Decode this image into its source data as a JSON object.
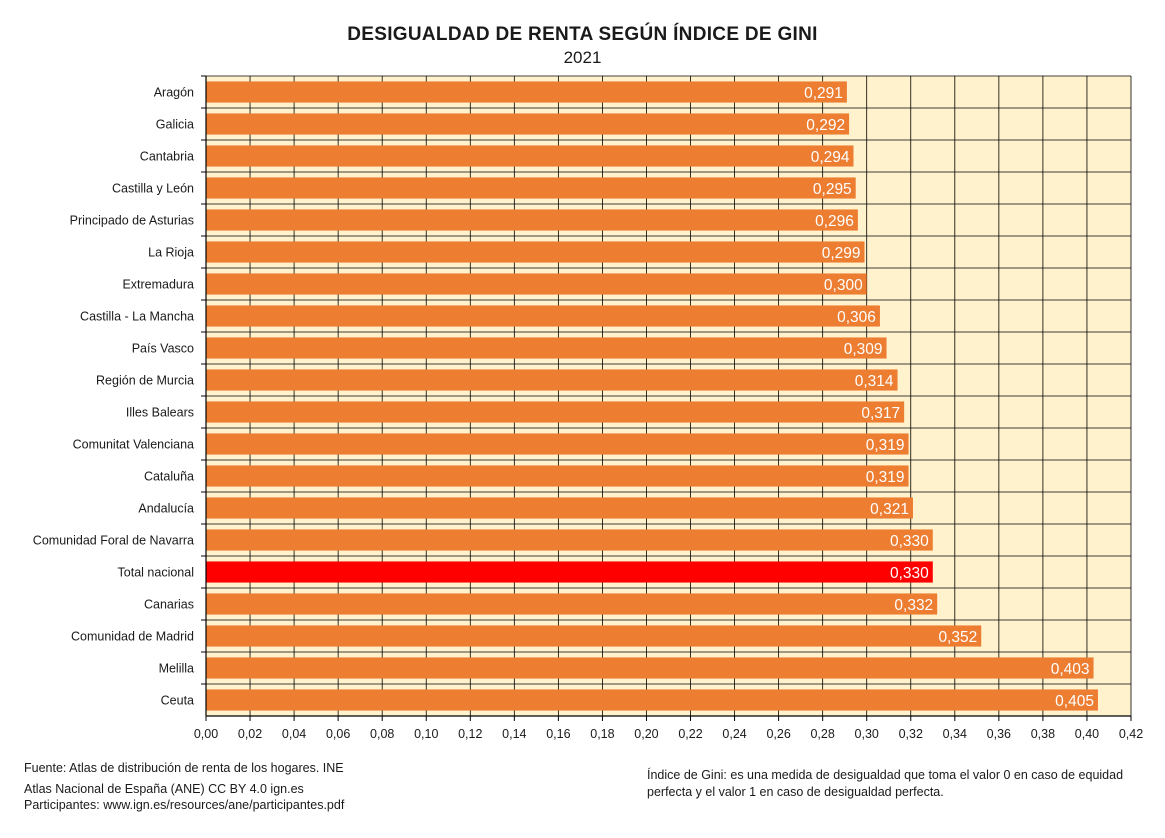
{
  "chart_data": {
    "type": "bar",
    "orientation": "horizontal",
    "title": "DESIGUALDAD DE RENTA SEGÚN ÍNDICE DE GINI",
    "subtitle": "2021",
    "categories": [
      "Aragón",
      "Galicia",
      "Cantabria",
      "Castilla y León",
      "Principado de Asturias",
      "La Rioja",
      "Extremadura",
      "Castilla - La Mancha",
      "País Vasco",
      "Región de Murcia",
      "Illes Balears",
      "Comunitat Valenciana",
      "Cataluña",
      "Andalucía",
      "Comunidad Foral de Navarra",
      "Total nacional",
      "Canarias",
      "Comunidad de Madrid",
      "Melilla",
      "Ceuta"
    ],
    "values": [
      0.291,
      0.292,
      0.294,
      0.295,
      0.296,
      0.299,
      0.3,
      0.306,
      0.309,
      0.314,
      0.317,
      0.319,
      0.319,
      0.321,
      0.33,
      0.33,
      0.332,
      0.352,
      0.403,
      0.405
    ],
    "value_labels": [
      "0,291",
      "0,292",
      "0,294",
      "0,295",
      "0,296",
      "0,299",
      "0,300",
      "0,306",
      "0,309",
      "0,314",
      "0,317",
      "0,319",
      "0,319",
      "0,321",
      "0,330",
      "0,330",
      "0,332",
      "0,352",
      "0,403",
      "0,405"
    ],
    "highlight_category": "Total nacional",
    "xlim": [
      0,
      0.42
    ],
    "xticks": [
      0,
      0.02,
      0.04,
      0.06,
      0.08,
      0.1,
      0.12,
      0.14,
      0.16,
      0.18,
      0.2,
      0.22,
      0.24,
      0.26,
      0.28,
      0.3,
      0.32,
      0.34,
      0.36,
      0.38,
      0.4,
      0.42
    ],
    "xtick_labels": [
      "0,00",
      "0,02",
      "0,04",
      "0,06",
      "0,08",
      "0,10",
      "0,12",
      "0,14",
      "0,16",
      "0,18",
      "0,20",
      "0,22",
      "0,24",
      "0,26",
      "0,28",
      "0,30",
      "0,32",
      "0,34",
      "0,36",
      "0,38",
      "0,40",
      "0,42"
    ],
    "grid": true,
    "colors": {
      "bar": "#ED7D31",
      "highlight": "#FF0000",
      "background": "#FFF2CC",
      "grid": "#000000",
      "value_text": "#FFFFFF"
    }
  },
  "footer": {
    "source": "Fuente: Atlas de distribución de renta de los hogares. INE",
    "license": "Atlas Nacional de España (ANE) CC BY 4.0 ign.es",
    "participants": "Participantes: www.ign.es/resources/ane/participantes.pdf",
    "note": "Índice de Gini: es una medida de desigualdad que toma el valor 0 en caso de equidad perfecta y el valor 1 en caso de desigualdad perfecta."
  }
}
